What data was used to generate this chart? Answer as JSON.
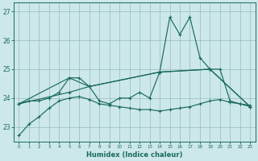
{
  "xlabel": "Humidex (Indice chaleur)",
  "background_color": "#cce8e8",
  "grid_color": "#99bbbb",
  "line_color": "#1a6b5a",
  "xlim": [
    -0.5,
    23.5
  ],
  "ylim": [
    22.5,
    27.3
  ],
  "yticks": [
    23,
    24,
    25,
    26,
    27
  ],
  "xticks": [
    0,
    1,
    2,
    3,
    4,
    5,
    6,
    7,
    8,
    9,
    10,
    11,
    12,
    13,
    14,
    15,
    16,
    17,
    18,
    19,
    20,
    21,
    22,
    23
  ],
  "series_wavy_x": [
    0,
    1,
    2,
    3,
    4,
    5,
    6,
    7,
    8,
    9,
    10,
    11,
    12,
    13,
    14,
    15,
    16,
    17,
    18,
    19,
    20,
    21,
    22,
    23
  ],
  "series_wavy_y": [
    23.8,
    23.9,
    23.9,
    24.0,
    24.2,
    24.7,
    24.7,
    24.4,
    23.9,
    23.8,
    24.0,
    24.0,
    24.2,
    24.0,
    24.9,
    26.8,
    26.2,
    26.8,
    25.4,
    25.0,
    25.0,
    23.9,
    23.8,
    23.7
  ],
  "series_bottom_x": [
    0,
    1,
    2,
    3,
    4,
    5,
    6,
    7,
    8,
    9,
    10,
    11,
    12,
    13,
    14,
    15,
    16,
    17,
    18,
    19,
    20,
    21,
    22,
    23
  ],
  "series_bottom_y": [
    22.7,
    23.1,
    23.35,
    23.65,
    23.9,
    24.0,
    24.05,
    23.95,
    23.8,
    23.75,
    23.7,
    23.65,
    23.6,
    23.6,
    23.55,
    23.6,
    23.65,
    23.7,
    23.8,
    23.9,
    23.95,
    23.85,
    23.8,
    23.75
  ],
  "series_line1_x": [
    0,
    5,
    7,
    14,
    19,
    23
  ],
  "series_line1_y": [
    23.8,
    24.7,
    24.4,
    24.9,
    25.0,
    23.7
  ],
  "series_line2_x": [
    0,
    5,
    7,
    14,
    19,
    23
  ],
  "series_line2_y": [
    23.8,
    24.2,
    24.4,
    24.9,
    25.0,
    23.7
  ]
}
